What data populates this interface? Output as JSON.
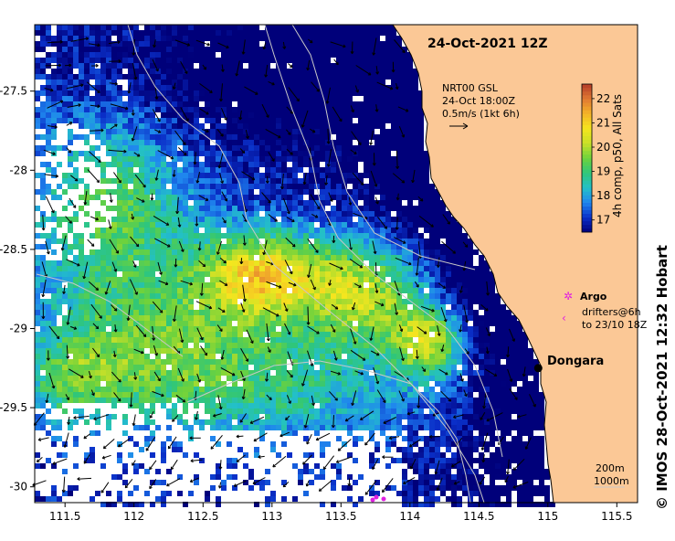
{
  "map": {
    "title": "24-Oct-2021 12Z",
    "lon_ticks": [
      "111.5",
      "112",
      "112.5",
      "113",
      "113.5",
      "114",
      "114.5",
      "115",
      "115.5"
    ],
    "lat_ticks": [
      "-27.5",
      "-28",
      "-28.5",
      "-29",
      "-29.5",
      "-30"
    ],
    "lon_range": [
      111.28,
      115.65
    ],
    "lat_range": [
      -30.1,
      -27.08
    ],
    "place": {
      "name": "Dongara",
      "lon": 114.93,
      "lat": -29.25
    },
    "current_legend": {
      "line1": "NRT00 GSL",
      "line2": "24-Oct 18:00Z",
      "line3": "0.5m/s (1kt 6h)"
    },
    "colorbar": {
      "label": "4h comp, p50, All Sats",
      "ticks": [
        "17",
        "18",
        "19",
        "20",
        "21",
        "22"
      ],
      "min": 16.5,
      "max": 22.6,
      "colors": [
        "#00007a",
        "#0a2fc8",
        "#1f86ee",
        "#23c0c8",
        "#2fc67a",
        "#6ed23c",
        "#c8e028",
        "#f5e61e",
        "#f4b428",
        "#e07832",
        "#b43c28"
      ]
    },
    "markers_legend": {
      "argo": "Argo",
      "drifters1": "drifters@6h",
      "drifters2": "to 23/10 18Z"
    },
    "isobaths": {
      "line1": "200m",
      "line2": "1000m"
    },
    "colors": {
      "land": "#fbc896",
      "marker_argo": "#e020e0",
      "no_data": "#ffffff"
    }
  },
  "credit": "© IMOS 28-Oct-2021 12:32 Hobart"
}
